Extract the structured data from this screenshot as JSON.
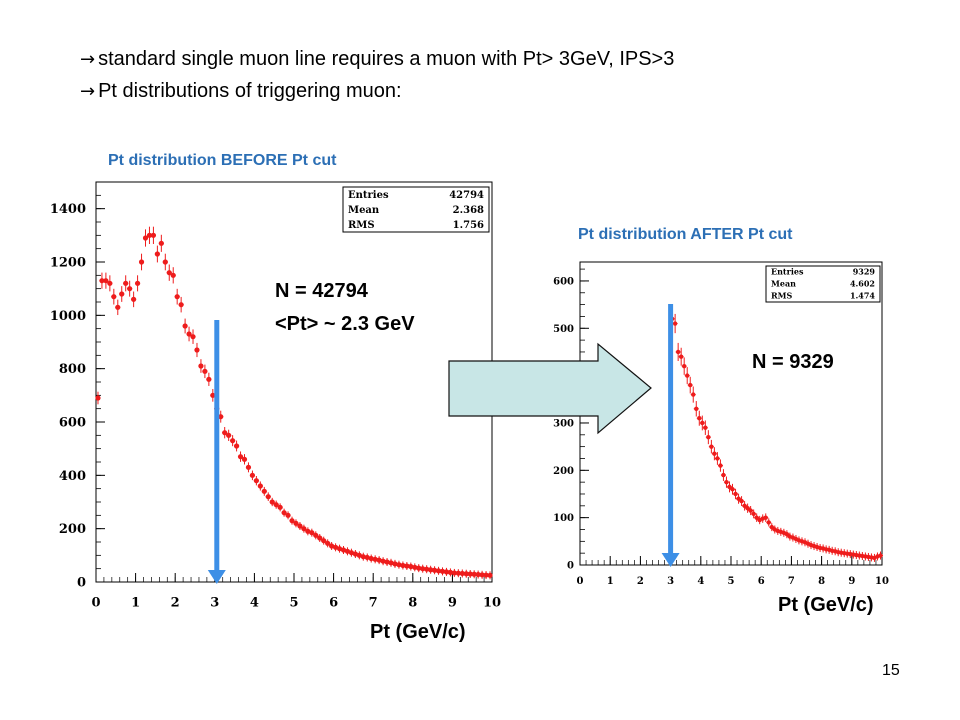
{
  "bullets": [
    {
      "arrow": "→",
      "text": "standard single muon line requires a muon with Pt> 3GeV, IPS>3"
    },
    {
      "arrow": "→",
      "text": "Pt distributions of triggering muon:"
    }
  ],
  "annotations": {
    "n_before": "N = 42794",
    "mean_before": "<Pt> ~ 2.3 GeV",
    "n_after": "N = 9329"
  },
  "slide_number": "15",
  "colors": {
    "points": "#ee1c1c",
    "cut_line": "#3d8fe6",
    "arrow_fill": "#c8e6e6",
    "title": "#2c6fb5"
  },
  "chart_data": [
    {
      "type": "scatter",
      "title": "Pt distribution BEFORE Pt cut",
      "xlabel": "Pt (GeV/c)",
      "ylabel": "",
      "xlim": [
        0,
        10
      ],
      "ylim": [
        0,
        1500
      ],
      "x_ticks": [
        "0",
        "1",
        "2",
        "3",
        "4",
        "5",
        "6",
        "7",
        "8",
        "9",
        "10"
      ],
      "y_ticks": [
        "0",
        "200",
        "400",
        "600",
        "800",
        "1000",
        "1200",
        "1400"
      ],
      "stats": [
        [
          "Entries",
          "42794"
        ],
        [
          "Mean",
          "2.368"
        ],
        [
          "RMS",
          "1.756"
        ]
      ],
      "cut_at": 3,
      "points": [
        [
          0.05,
          690
        ],
        [
          0.15,
          1130
        ],
        [
          0.25,
          1130
        ],
        [
          0.35,
          1120
        ],
        [
          0.45,
          1070
        ],
        [
          0.55,
          1030
        ],
        [
          0.65,
          1080
        ],
        [
          0.75,
          1120
        ],
        [
          0.85,
          1100
        ],
        [
          0.95,
          1060
        ],
        [
          1.05,
          1120
        ],
        [
          1.15,
          1200
        ],
        [
          1.25,
          1290
        ],
        [
          1.35,
          1300
        ],
        [
          1.45,
          1300
        ],
        [
          1.55,
          1230
        ],
        [
          1.65,
          1270
        ],
        [
          1.75,
          1200
        ],
        [
          1.85,
          1160
        ],
        [
          1.95,
          1150
        ],
        [
          2.05,
          1070
        ],
        [
          2.15,
          1040
        ],
        [
          2.25,
          960
        ],
        [
          2.35,
          930
        ],
        [
          2.45,
          920
        ],
        [
          2.55,
          870
        ],
        [
          2.65,
          810
        ],
        [
          2.75,
          790
        ],
        [
          2.85,
          760
        ],
        [
          2.95,
          700
        ],
        [
          3.05,
          650
        ],
        [
          3.15,
          620
        ],
        [
          3.25,
          560
        ],
        [
          3.35,
          550
        ],
        [
          3.45,
          530
        ],
        [
          3.55,
          510
        ],
        [
          3.65,
          470
        ],
        [
          3.75,
          460
        ],
        [
          3.85,
          430
        ],
        [
          3.95,
          400
        ],
        [
          4.05,
          380
        ],
        [
          4.15,
          360
        ],
        [
          4.25,
          340
        ],
        [
          4.35,
          320
        ],
        [
          4.45,
          300
        ],
        [
          4.55,
          290
        ],
        [
          4.65,
          280
        ],
        [
          4.75,
          260
        ],
        [
          4.85,
          250
        ],
        [
          4.95,
          230
        ],
        [
          5.05,
          220
        ],
        [
          5.15,
          210
        ],
        [
          5.25,
          200
        ],
        [
          5.35,
          190
        ],
        [
          5.45,
          185
        ],
        [
          5.55,
          175
        ],
        [
          5.65,
          165
        ],
        [
          5.75,
          155
        ],
        [
          5.85,
          145
        ],
        [
          5.95,
          135
        ],
        [
          6.05,
          130
        ],
        [
          6.15,
          125
        ],
        [
          6.25,
          120
        ],
        [
          6.35,
          115
        ],
        [
          6.45,
          110
        ],
        [
          6.55,
          105
        ],
        [
          6.65,
          100
        ],
        [
          6.75,
          95
        ],
        [
          6.85,
          92
        ],
        [
          6.95,
          88
        ],
        [
          7.05,
          85
        ],
        [
          7.15,
          82
        ],
        [
          7.25,
          78
        ],
        [
          7.35,
          75
        ],
        [
          7.45,
          72
        ],
        [
          7.55,
          68
        ],
        [
          7.65,
          65
        ],
        [
          7.75,
          62
        ],
        [
          7.85,
          60
        ],
        [
          7.95,
          58
        ],
        [
          8.05,
          55
        ],
        [
          8.15,
          52
        ],
        [
          8.25,
          50
        ],
        [
          8.35,
          48
        ],
        [
          8.45,
          46
        ],
        [
          8.55,
          44
        ],
        [
          8.65,
          42
        ],
        [
          8.75,
          40
        ],
        [
          8.85,
          38
        ],
        [
          8.95,
          36
        ],
        [
          9.05,
          34
        ],
        [
          9.15,
          33
        ],
        [
          9.25,
          32
        ],
        [
          9.35,
          31
        ],
        [
          9.45,
          30
        ],
        [
          9.55,
          29
        ],
        [
          9.65,
          28
        ],
        [
          9.75,
          27
        ],
        [
          9.85,
          26
        ],
        [
          9.95,
          25
        ]
      ]
    },
    {
      "type": "scatter",
      "title": "Pt distribution AFTER Pt cut",
      "xlabel": "Pt (GeV/c)",
      "ylabel": "",
      "xlim": [
        0,
        10
      ],
      "ylim": [
        0,
        640
      ],
      "x_ticks": [
        "0",
        "1",
        "2",
        "3",
        "4",
        "5",
        "6",
        "7",
        "8",
        "9",
        "10"
      ],
      "y_ticks": [
        "0",
        "100",
        "200",
        "300",
        "400",
        "500",
        "600"
      ],
      "stats": [
        [
          "Entries",
          "9329"
        ],
        [
          "Mean",
          "4.602"
        ],
        [
          "RMS",
          "1.474"
        ]
      ],
      "cut_at": 3,
      "points": [
        [
          3.05,
          520
        ],
        [
          3.15,
          510
        ],
        [
          3.25,
          450
        ],
        [
          3.35,
          440
        ],
        [
          3.45,
          420
        ],
        [
          3.55,
          400
        ],
        [
          3.65,
          380
        ],
        [
          3.75,
          360
        ],
        [
          3.85,
          330
        ],
        [
          3.95,
          310
        ],
        [
          4.05,
          300
        ],
        [
          4.15,
          290
        ],
        [
          4.25,
          270
        ],
        [
          4.35,
          250
        ],
        [
          4.45,
          235
        ],
        [
          4.55,
          225
        ],
        [
          4.65,
          210
        ],
        [
          4.75,
          190
        ],
        [
          4.85,
          175
        ],
        [
          4.95,
          165
        ],
        [
          5.05,
          160
        ],
        [
          5.15,
          150
        ],
        [
          5.25,
          140
        ],
        [
          5.35,
          135
        ],
        [
          5.45,
          125
        ],
        [
          5.55,
          120
        ],
        [
          5.65,
          115
        ],
        [
          5.75,
          108
        ],
        [
          5.85,
          100
        ],
        [
          5.95,
          95
        ],
        [
          6.05,
          98
        ],
        [
          6.15,
          100
        ],
        [
          6.25,
          90
        ],
        [
          6.35,
          80
        ],
        [
          6.45,
          75
        ],
        [
          6.55,
          72
        ],
        [
          6.65,
          70
        ],
        [
          6.75,
          68
        ],
        [
          6.85,
          65
        ],
        [
          6.95,
          60
        ],
        [
          7.05,
          58
        ],
        [
          7.15,
          55
        ],
        [
          7.25,
          52
        ],
        [
          7.35,
          50
        ],
        [
          7.45,
          48
        ],
        [
          7.55,
          45
        ],
        [
          7.65,
          42
        ],
        [
          7.75,
          40
        ],
        [
          7.85,
          38
        ],
        [
          7.95,
          36
        ],
        [
          8.05,
          35
        ],
        [
          8.15,
          33
        ],
        [
          8.25,
          32
        ],
        [
          8.35,
          30
        ],
        [
          8.45,
          29
        ],
        [
          8.55,
          27
        ],
        [
          8.65,
          26
        ],
        [
          8.75,
          25
        ],
        [
          8.85,
          24
        ],
        [
          8.95,
          23
        ],
        [
          9.05,
          22
        ],
        [
          9.15,
          21
        ],
        [
          9.25,
          20
        ],
        [
          9.35,
          19
        ],
        [
          9.45,
          18
        ],
        [
          9.55,
          17
        ],
        [
          9.65,
          16
        ],
        [
          9.75,
          15
        ],
        [
          9.85,
          18
        ],
        [
          9.95,
          20
        ]
      ]
    }
  ]
}
